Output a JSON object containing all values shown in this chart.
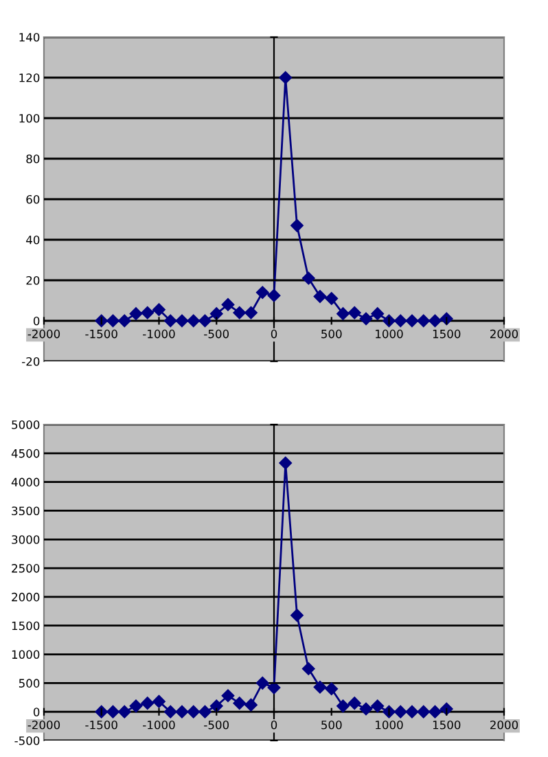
{
  "chart_data": [
    {
      "type": "line",
      "marker": "diamond",
      "grid": "y",
      "xlim": [
        -2000,
        2000
      ],
      "xticks": [
        -2000,
        -1500,
        -1000,
        -500,
        0,
        500,
        1000,
        1500,
        2000
      ],
      "ylim": [
        -20,
        140
      ],
      "yticks": [
        -20,
        0,
        20,
        40,
        60,
        80,
        100,
        120,
        140
      ],
      "x": [
        -1500,
        -1400,
        -1300,
        -1200,
        -1100,
        -1000,
        -900,
        -800,
        -700,
        -600,
        -500,
        -400,
        -300,
        -200,
        -100,
        0,
        100,
        200,
        300,
        400,
        500,
        600,
        700,
        800,
        900,
        1000,
        1100,
        1200,
        1300,
        1400,
        1500
      ],
      "series": [
        {
          "color": "#000080",
          "values": [
            0,
            0,
            0,
            3.5,
            4,
            5.5,
            0,
            0,
            0,
            0,
            3.5,
            8,
            4,
            4,
            14,
            12.5,
            120,
            47,
            21,
            12,
            11,
            3.5,
            4,
            1,
            3.5,
            0,
            0,
            0,
            0,
            0,
            1
          ]
        }
      ]
    },
    {
      "type": "line",
      "marker": "diamond",
      "grid": "y",
      "xlim": [
        -2000,
        2000
      ],
      "xticks": [
        -2000,
        -1500,
        -1000,
        -500,
        0,
        500,
        1000,
        1500,
        2000
      ],
      "ylim": [
        -500,
        5000
      ],
      "yticks": [
        -500,
        0,
        500,
        1000,
        1500,
        2000,
        2500,
        3000,
        3500,
        4000,
        4500,
        5000
      ],
      "x": [
        -1500,
        -1400,
        -1300,
        -1200,
        -1100,
        -1000,
        -900,
        -800,
        -700,
        -600,
        -500,
        -400,
        -300,
        -200,
        -100,
        0,
        100,
        200,
        300,
        400,
        500,
        600,
        700,
        800,
        900,
        1000,
        1100,
        1200,
        1300,
        1400,
        1500
      ],
      "series": [
        {
          "color": "#000080",
          "values": [
            0,
            0,
            0,
            100,
            150,
            180,
            0,
            0,
            0,
            0,
            100,
            280,
            150,
            120,
            500,
            420,
            4330,
            1680,
            750,
            430,
            400,
            100,
            150,
            50,
            100,
            0,
            0,
            0,
            0,
            0,
            50
          ]
        }
      ]
    }
  ]
}
